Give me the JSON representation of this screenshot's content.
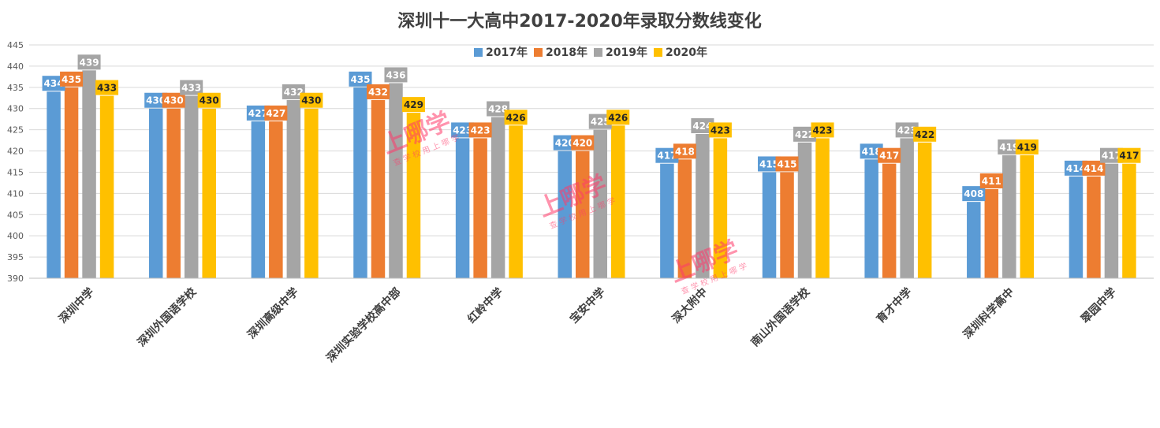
{
  "chart_data": {
    "type": "bar",
    "title": "深圳十一大高中2017-2020年录取分数线变化",
    "xlabel": "",
    "ylabel": "",
    "ylim": [
      390,
      445
    ],
    "yticks": [
      390,
      395,
      400,
      405,
      410,
      415,
      420,
      425,
      430,
      435,
      440,
      445
    ],
    "grid": true,
    "legend_position": "top",
    "categories": [
      "深圳中学",
      "深圳外国语学校",
      "深圳高级中学",
      "深圳实验学校高中部",
      "红岭中学",
      "宝安中学",
      "深大附中",
      "南山外国语学校",
      "育才中学",
      "深圳科学高中",
      "翠园中学"
    ],
    "series": [
      {
        "name": "2017年",
        "color": "#5b9bd5",
        "values": [
          434,
          430,
          427,
          435,
          423,
          420,
          417,
          415,
          418,
          408,
          414
        ]
      },
      {
        "name": "2018年",
        "color": "#ed7d31",
        "values": [
          435,
          430,
          427,
          432,
          423,
          420,
          418,
          415,
          417,
          411,
          414
        ]
      },
      {
        "name": "2019年",
        "color": "#a5a5a5",
        "values": [
          439,
          433,
          432,
          436,
          428,
          425,
          424,
          422,
          423,
          419,
          417
        ]
      },
      {
        "name": "2020年",
        "color": "#ffc000",
        "values": [
          433,
          430,
          430,
          429,
          426,
          426,
          423,
          423,
          422,
          419,
          417
        ]
      }
    ]
  },
  "watermarks": {
    "brand_text": "上哪学",
    "brand_sub": "查 学 校   用 上 哪 学"
  }
}
